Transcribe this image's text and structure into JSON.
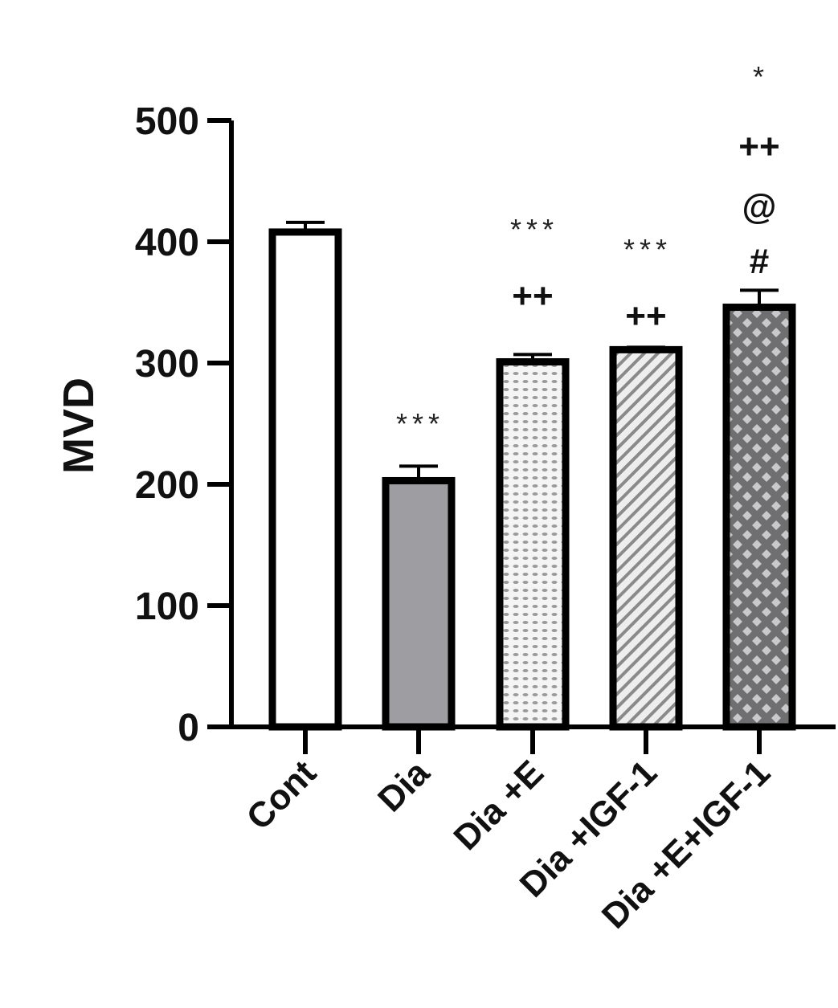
{
  "chart_data": {
    "type": "bar",
    "title": "",
    "xlabel": "",
    "ylabel": "MVD",
    "ylim": [
      0,
      500
    ],
    "yticks": [
      0,
      100,
      200,
      300,
      400,
      500
    ],
    "grid": false,
    "categories": [
      "Cont",
      "Dia",
      "Dia +E",
      "Dia +IGF-1",
      "Dia +E+IGF-1"
    ],
    "values": [
      408,
      203,
      301,
      311,
      346
    ],
    "errors": [
      8,
      12,
      6,
      2,
      14
    ],
    "fills": [
      "white",
      "solid-gray",
      "dotted-light",
      "diagonal-hatch",
      "checker-dark"
    ],
    "colors": {
      "bar_gray": "#9e9ea2",
      "dark_pattern": "#6f6f72",
      "outline": "#000000"
    },
    "annotations": [
      [],
      [
        "***"
      ],
      [
        "***",
        "++"
      ],
      [
        "***",
        "++"
      ],
      [
        "*",
        "++",
        "@",
        "#"
      ]
    ]
  }
}
